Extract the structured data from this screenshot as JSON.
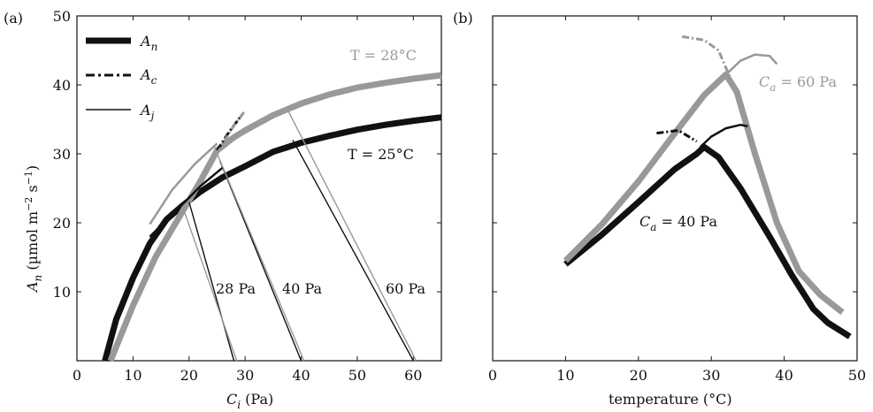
{
  "colors": {
    "black": "#111111",
    "gray": "#999999"
  },
  "chart_data": [
    {
      "type": "line",
      "panel_label": "(a)",
      "xlabel_sym": "C",
      "xlabel_sub": "i",
      "xlabel_unit": " (Pa)",
      "ylabel_sym": "A",
      "ylabel_sub": "n",
      "ylabel_unit": " (µmol m",
      "ylabel_exp1": "−2",
      "ylabel_mid": " s",
      "ylabel_exp2": "−1",
      "ylabel_end": ")",
      "xlim": [
        0,
        65
      ],
      "ylim": [
        0,
        50
      ],
      "xticks": [
        0,
        10,
        20,
        30,
        40,
        50,
        60
      ],
      "yticks": [
        10,
        20,
        30,
        40,
        50
      ],
      "xtick_labels": [
        "0",
        "10",
        "20",
        "30",
        "40",
        "50",
        "60"
      ],
      "ytick_labels": [
        "10",
        "20",
        "30",
        "40",
        "50"
      ],
      "legend": [
        {
          "sym": "A",
          "sub": "n",
          "style": "thick"
        },
        {
          "sym": "A",
          "sub": "c",
          "style": "dashdot"
        },
        {
          "sym": "A",
          "sub": "j",
          "style": "thin"
        }
      ],
      "annotations": [
        {
          "text": "T = 28°C",
          "color": "gray"
        },
        {
          "text": "T = 25°C",
          "color": "black"
        },
        {
          "text": "28 Pa"
        },
        {
          "text": "40 Pa"
        },
        {
          "text": "60 Pa"
        }
      ],
      "series": [
        {
          "color": "black",
          "width": 7,
          "dash": "",
          "points": [
            [
              5,
              0
            ],
            [
              7,
              6
            ],
            [
              10,
              12
            ],
            [
              13,
              17
            ],
            [
              16,
              20.5
            ],
            [
              19,
              22.6
            ],
            [
              22,
              24.5
            ],
            [
              26,
              26.6
            ],
            [
              30,
              28.2
            ],
            [
              35,
              30.3
            ],
            [
              40,
              31.6
            ],
            [
              45,
              32.6
            ],
            [
              50,
              33.5
            ],
            [
              55,
              34.2
            ],
            [
              60,
              34.8
            ],
            [
              65,
              35.3
            ]
          ]
        },
        {
          "color": "gray",
          "width": 7,
          "dash": "",
          "points": [
            [
              6,
              0
            ],
            [
              10,
              8
            ],
            [
              14,
              15
            ],
            [
              18,
              20.5
            ],
            [
              22,
              26
            ],
            [
              25,
              30.5
            ],
            [
              28,
              32.4
            ],
            [
              30,
              33.4
            ],
            [
              35,
              35.6
            ],
            [
              40,
              37.3
            ],
            [
              45,
              38.6
            ],
            [
              50,
              39.6
            ],
            [
              55,
              40.3
            ],
            [
              60,
              40.9
            ],
            [
              65,
              41.4
            ]
          ]
        },
        {
          "color": "black",
          "width": 2.5,
          "dash": "",
          "points": [
            [
              13,
              18
            ],
            [
              18,
              22
            ],
            [
              22,
              25.3
            ],
            [
              26,
              28
            ]
          ]
        },
        {
          "color": "gray",
          "width": 2.5,
          "dash": "",
          "points": [
            [
              13,
              19.8
            ],
            [
              17,
              24.8
            ],
            [
              21,
              28.5
            ],
            [
              25,
              31.5
            ]
          ]
        },
        {
          "color": "black",
          "width": 3,
          "dash": "8 3 2 3",
          "points": [
            [
              25,
              30.5
            ],
            [
              27,
              33
            ],
            [
              29,
              35.2
            ]
          ]
        },
        {
          "color": "gray",
          "width": 3,
          "dash": "8 3 2 3",
          "points": [
            [
              25,
              30
            ],
            [
              27.5,
              33.5
            ],
            [
              30,
              36.3
            ]
          ]
        },
        {
          "color": "black",
          "width": 1.4,
          "dash": "",
          "points": [
            [
              28,
              0
            ],
            [
              20,
              23
            ]
          ]
        },
        {
          "color": "gray",
          "width": 1.4,
          "dash": "",
          "points": [
            [
              28.5,
              0
            ],
            [
              19,
              22
            ]
          ]
        },
        {
          "color": "black",
          "width": 1.4,
          "dash": "",
          "points": [
            [
              40,
              0
            ],
            [
              25.5,
              29
            ]
          ]
        },
        {
          "color": "gray",
          "width": 1.4,
          "dash": "",
          "points": [
            [
              40.5,
              0
            ],
            [
              24.5,
              31
            ]
          ]
        },
        {
          "color": "black",
          "width": 1.4,
          "dash": "",
          "points": [
            [
              60,
              0
            ],
            [
              38.5,
              32
            ]
          ]
        },
        {
          "color": "gray",
          "width": 1.4,
          "dash": "",
          "points": [
            [
              60.5,
              0
            ],
            [
              37.5,
              36.5
            ]
          ]
        }
      ]
    },
    {
      "type": "line",
      "panel_label": "(b)",
      "xlabel": "temperature (°C)",
      "xlim": [
        0,
        50
      ],
      "ylim": [
        0,
        50
      ],
      "xticks": [
        0,
        10,
        20,
        30,
        40,
        50
      ],
      "xtick_labels": [
        "0",
        "10",
        "20",
        "30",
        "40",
        "50"
      ],
      "annotations": [
        {
          "text": "C_a = 60 Pa",
          "sym": "C",
          "sub": "a",
          "rest": " = 60 Pa",
          "color": "gray"
        },
        {
          "text": "C_a = 40 Pa",
          "sym": "C",
          "sub": "a",
          "rest": " = 40 Pa",
          "color": "black"
        }
      ],
      "series": [
        {
          "color": "black",
          "width": 7,
          "dash": "",
          "points": [
            [
              10,
              14
            ],
            [
              15,
              18.3
            ],
            [
              20,
              23
            ],
            [
              25,
              27.8
            ],
            [
              28,
              30
            ],
            [
              29,
              31
            ],
            [
              31,
              29.5
            ],
            [
              34,
              25
            ],
            [
              38,
              18
            ],
            [
              41,
              12.5
            ],
            [
              44,
              7.5
            ],
            [
              46,
              5.5
            ],
            [
              49,
              3.5
            ]
          ]
        },
        {
          "color": "gray",
          "width": 7,
          "dash": "",
          "points": [
            [
              10,
              14.5
            ],
            [
              15,
              19.8
            ],
            [
              20,
              26
            ],
            [
              25,
              33
            ],
            [
              29,
              38.5
            ],
            [
              32,
              41.5
            ],
            [
              33.5,
              39
            ],
            [
              36,
              30
            ],
            [
              39,
              20
            ],
            [
              42,
              13
            ],
            [
              45,
              9.5
            ],
            [
              48,
              7
            ]
          ]
        },
        {
          "color": "black",
          "width": 2.5,
          "dash": "",
          "points": [
            [
              28.5,
              31
            ],
            [
              30,
              32.5
            ],
            [
              32,
              33.7
            ],
            [
              34,
              34.2
            ],
            [
              35,
              34
            ]
          ]
        },
        {
          "color": "gray",
          "width": 2.5,
          "dash": "",
          "points": [
            [
              32,
              41.5
            ],
            [
              34,
              43.5
            ],
            [
              36,
              44.4
            ],
            [
              38,
              44.2
            ],
            [
              39,
              43
            ]
          ]
        },
        {
          "color": "black",
          "width": 3,
          "dash": "8 3 2 3",
          "points": [
            [
              22.5,
              33
            ],
            [
              25.5,
              33.4
            ],
            [
              28,
              31.8
            ]
          ]
        },
        {
          "color": "gray",
          "width": 3,
          "dash": "8 3 2 3",
          "points": [
            [
              26,
              47
            ],
            [
              29,
              46.5
            ],
            [
              31,
              45
            ],
            [
              33,
              40
            ]
          ]
        }
      ]
    }
  ]
}
